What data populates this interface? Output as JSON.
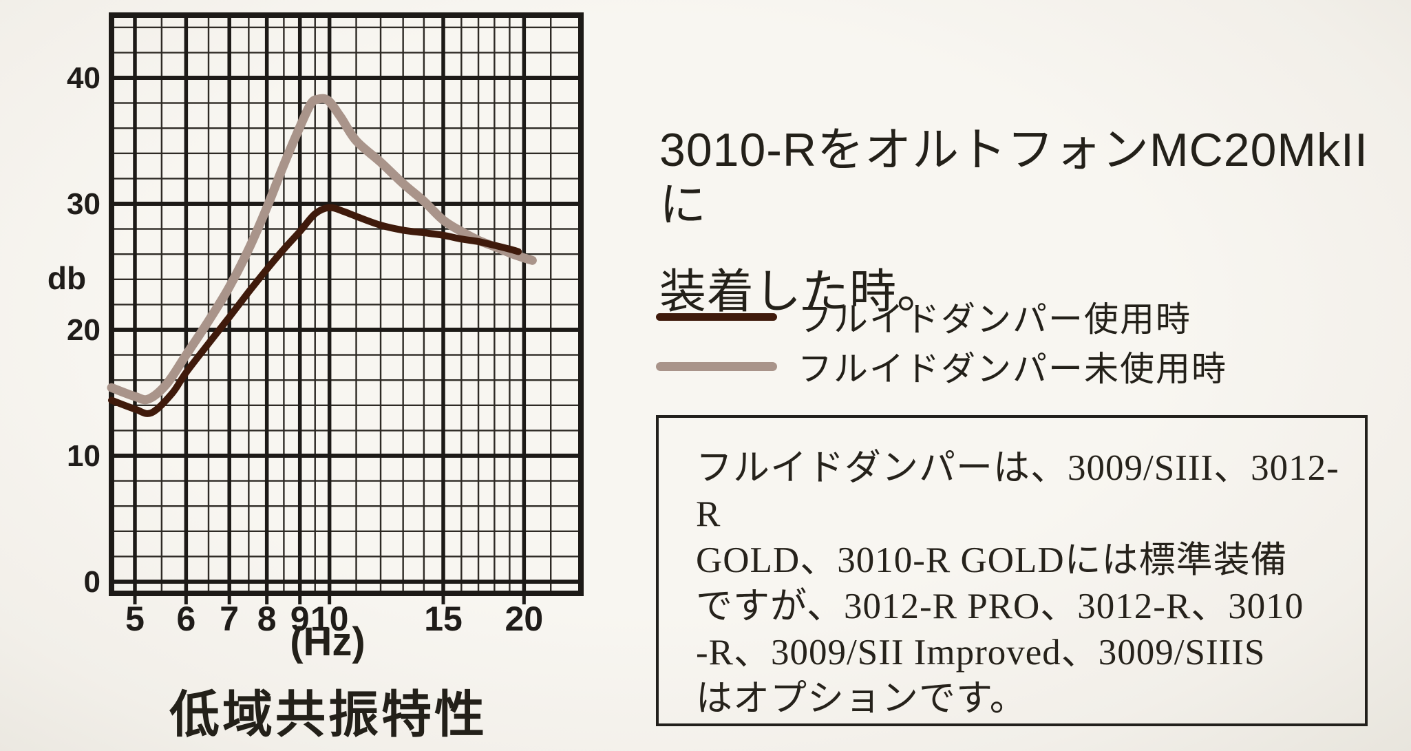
{
  "heading": {
    "line1": "3010-RをオルトフォンMC20MkIIに",
    "line2": "装着した時。"
  },
  "legend": {
    "items": [
      {
        "label": "フルイドダンパー使用時",
        "color": "#3f1a0b"
      },
      {
        "label": "フルイドダンパー未使用時",
        "color": "#a9948a"
      }
    ]
  },
  "note_box": {
    "lines": [
      "フルイドダンパーは、3009/SIII、3012-R",
      "GOLD、3010-R GOLDには標準装備",
      "ですが、3012-R PRO、3012-R、3010",
      "-R、3009/SII Improved、3009/SIIIS",
      "はオプションです。"
    ]
  },
  "chart_data": {
    "type": "line",
    "caption": "低域共振特性",
    "xlabel": "(Hz)",
    "ylabel": "db",
    "x_scale": "log",
    "xlim": [
      4.6,
      24.5
    ],
    "ylim": [
      -1,
      45
    ],
    "grid": true,
    "legend_position": "right",
    "x_ticks": [
      5,
      6,
      7,
      8,
      9,
      10,
      15,
      20
    ],
    "y_ticks": [
      40,
      30,
      20,
      10,
      0
    ],
    "x_minor_gridlines": [
      5.5,
      6.5,
      7.5,
      8.5,
      9.5,
      11,
      12,
      13,
      14,
      16,
      17,
      18,
      19,
      22
    ],
    "y_minor_step": 2,
    "series": [
      {
        "name": "フルイドダンパー使用時",
        "color": "#3f1a0b",
        "points": [
          [
            4.6,
            14.4
          ],
          [
            5.0,
            13.7
          ],
          [
            5.3,
            13.4
          ],
          [
            5.7,
            14.9
          ],
          [
            6.0,
            16.6
          ],
          [
            6.5,
            18.9
          ],
          [
            7.0,
            21.0
          ],
          [
            7.5,
            23.0
          ],
          [
            8.0,
            24.8
          ],
          [
            8.5,
            26.4
          ],
          [
            9.0,
            27.8
          ],
          [
            9.5,
            29.2
          ],
          [
            10.0,
            29.7
          ],
          [
            10.5,
            29.4
          ],
          [
            11.0,
            29.0
          ],
          [
            12.0,
            28.3
          ],
          [
            13.0,
            27.9
          ],
          [
            14.0,
            27.7
          ],
          [
            15.0,
            27.5
          ],
          [
            16.0,
            27.2
          ],
          [
            17.0,
            27.0
          ],
          [
            18.0,
            26.7
          ],
          [
            19.0,
            26.4
          ],
          [
            19.6,
            26.2
          ]
        ]
      },
      {
        "name": "フルイドダンパー未使用時",
        "color": "#a9948a",
        "points": [
          [
            4.6,
            15.4
          ],
          [
            5.0,
            14.7
          ],
          [
            5.25,
            14.5
          ],
          [
            5.6,
            15.7
          ],
          [
            6.0,
            18.0
          ],
          [
            6.5,
            20.7
          ],
          [
            7.0,
            23.4
          ],
          [
            7.5,
            26.4
          ],
          [
            8.0,
            29.7
          ],
          [
            8.5,
            33.1
          ],
          [
            9.0,
            36.1
          ],
          [
            9.35,
            37.9
          ],
          [
            9.6,
            38.3
          ],
          [
            9.95,
            38.2
          ],
          [
            10.4,
            36.9
          ],
          [
            11.0,
            35.0
          ],
          [
            12.0,
            33.3
          ],
          [
            13.0,
            31.6
          ],
          [
            14.0,
            30.2
          ],
          [
            15.0,
            28.7
          ],
          [
            16.0,
            27.8
          ],
          [
            17.0,
            27.1
          ],
          [
            18.0,
            26.6
          ],
          [
            19.0,
            26.1
          ],
          [
            20.0,
            25.7
          ],
          [
            20.6,
            25.5
          ]
        ]
      }
    ]
  }
}
